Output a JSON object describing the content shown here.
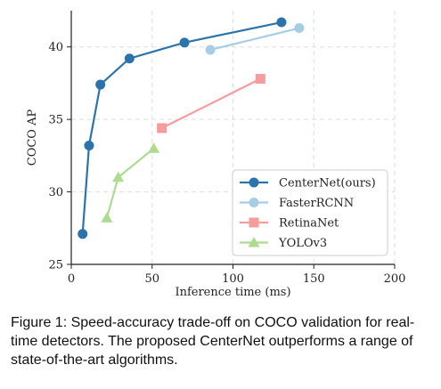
{
  "chart_data": {
    "type": "line",
    "title": "",
    "xlabel": "Inference time (ms)",
    "ylabel": "COCO AP",
    "xlim": [
      0,
      200
    ],
    "ylim": [
      25,
      42.5
    ],
    "xticks": [
      0,
      50,
      100,
      150,
      200
    ],
    "yticks": [
      25,
      30,
      35,
      40
    ],
    "grid": true,
    "legend_position": "lower-right",
    "series": [
      {
        "name": "CenterNet(ours)",
        "color": "#2a74ab",
        "marker": "circle",
        "x": [
          7,
          11,
          18,
          36,
          70,
          130
        ],
        "y": [
          27.1,
          33.2,
          37.4,
          39.2,
          40.3,
          41.7
        ]
      },
      {
        "name": "FasterRCNN",
        "color": "#a6cde4",
        "marker": "circle",
        "x": [
          86,
          141
        ],
        "y": [
          39.8,
          41.3
        ]
      },
      {
        "name": "RetinaNet",
        "color": "#f59c9c",
        "marker": "square",
        "x": [
          56,
          117
        ],
        "y": [
          34.4,
          37.8
        ]
      },
      {
        "name": "YOLOv3",
        "color": "#acdc8d",
        "marker": "triangle",
        "x": [
          22,
          29,
          51
        ],
        "y": [
          28.2,
          31.0,
          33.0
        ]
      }
    ]
  },
  "caption": "Figure 1: Speed-accuracy trade-off on COCO validation for real-time detectors. The proposed CenterNet outperforms a range of state-of-the-art algorithms."
}
